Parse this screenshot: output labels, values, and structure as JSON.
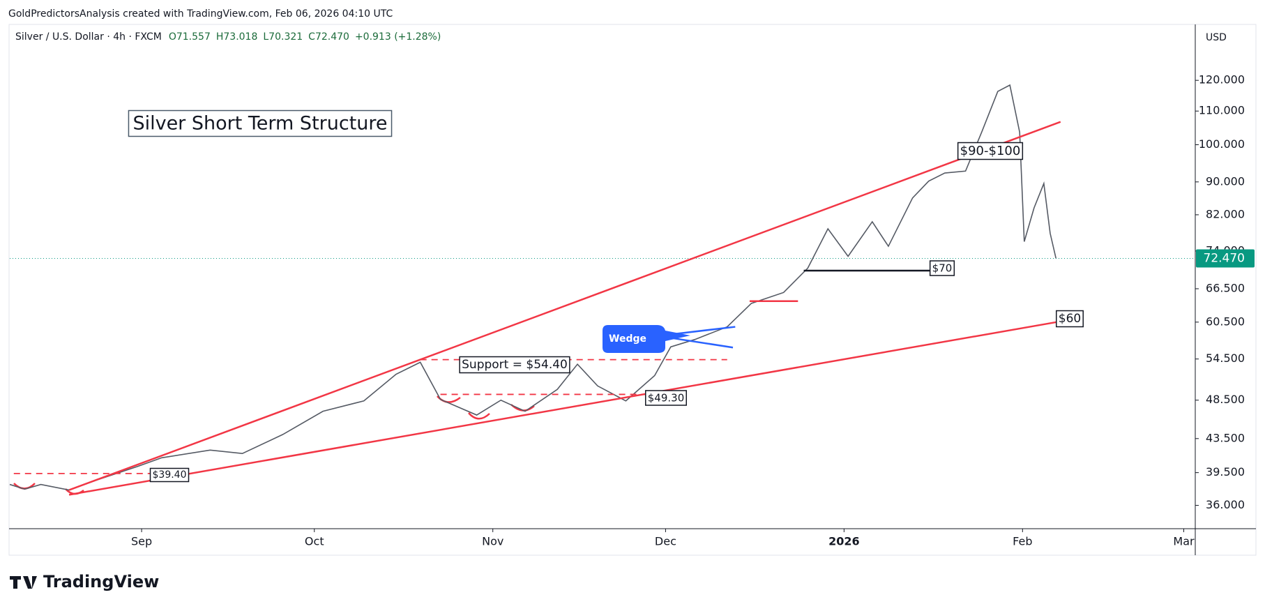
{
  "header": {
    "attribution": "GoldPredictorsAnalysis created with TradingView.com, Feb 06, 2026 04:10 UTC",
    "brand": "TradingView"
  },
  "chart_data": {
    "type": "line",
    "title": "Silver Short Term Structure",
    "symbol": "Silver / U.S. Dollar · 4h · FXCM",
    "ohlc": [
      "O71.557",
      "H73.018",
      "L70.321",
      "C72.470",
      "+0.913 (+1.28%)"
    ],
    "currency": "USD",
    "last_price": {
      "value": 72.47,
      "label": "72.470"
    },
    "log_scale": true,
    "x": [
      8.1,
      10.7,
      13.5,
      18.4,
      23.3,
      30.3,
      34.5,
      42.9,
      48.5,
      55.5,
      62.5,
      69.6,
      75.2,
      79.4,
      82.9,
      89.2,
      93.4,
      97.6,
      103.2,
      106.7,
      110.2,
      115.1,
      120.1,
      122.9,
      127.1,
      132.7,
      136.9,
      142.5,
      146.7,
      150.2,
      153.7,
      157.9,
      160.7,
      164.9,
      167.7,
      170.5,
      174.1,
      176.9,
      179.7,
      181.8,
      183.5,
      184.3,
      186.0,
      187.7,
      188.8,
      189.8
    ],
    "series": [
      {
        "color": "#555a64",
        "values": [
          38.2,
          37.7,
          38.2,
          37.6,
          38.7,
          40.2,
          41.2,
          42.1,
          41.7,
          44.0,
          47.0,
          48.4,
          52.2,
          54.0,
          48.6,
          46.5,
          48.5,
          47.0,
          50.0,
          53.7,
          50.5,
          48.4,
          52.0,
          56.4,
          57.6,
          59.7,
          63.8,
          65.8,
          70.5,
          78.8,
          72.9,
          80.4,
          75.0,
          86.0,
          90.2,
          92.3,
          92.8,
          103.6,
          116.3,
          118.4,
          103.6,
          76.0,
          83.6,
          89.6,
          77.8,
          72.5
        ]
      }
    ],
    "xlim": [
      8.1,
      214
    ],
    "ylim": [
      33.7,
      140.6
    ],
    "xticks": [
      {
        "value": 31,
        "label": "Sep"
      },
      {
        "value": 61,
        "label": "Oct"
      },
      {
        "value": 92,
        "label": "Nov"
      },
      {
        "value": 122,
        "label": "Dec"
      },
      {
        "value": 153,
        "label": "2026"
      },
      {
        "value": 184,
        "label": "Feb"
      },
      {
        "value": 212,
        "label": "Mar"
      }
    ],
    "yticks": [
      {
        "value": 36,
        "label": "36.000"
      },
      {
        "value": 39.5,
        "label": "39.500"
      },
      {
        "value": 43.5,
        "label": "43.500"
      },
      {
        "value": 48.5,
        "label": "48.500"
      },
      {
        "value": 54.5,
        "label": "54.500"
      },
      {
        "value": 60.5,
        "label": "60.500"
      },
      {
        "value": 66.5,
        "label": "66.500"
      },
      {
        "value": 74,
        "label": "74.000"
      },
      {
        "value": 82,
        "label": "82.000"
      },
      {
        "value": 90,
        "label": "90.000"
      },
      {
        "value": 100,
        "label": "100.000"
      },
      {
        "value": 110,
        "label": "110.000"
      },
      {
        "value": 120,
        "label": "120.000"
      }
    ],
    "lines": [
      {
        "color": "#f23645",
        "dashed": false,
        "points": [
          [
            18.4,
            37.6
          ],
          [
            190.6,
            106.7
          ]
        ]
      },
      {
        "color": "#f23645",
        "dashed": false,
        "points": [
          [
            18.4,
            37.1
          ],
          [
            189.9,
            60.5
          ]
        ]
      },
      {
        "color": "#f23645",
        "dashed": true,
        "points": [
          [
            8.8,
            39.4
          ],
          [
            33.1,
            39.4
          ]
        ]
      },
      {
        "color": "#f23645",
        "dashed": true,
        "points": [
          [
            79.4,
            54.4
          ],
          [
            132.7,
            54.4
          ]
        ]
      },
      {
        "color": "#f23645",
        "dashed": true,
        "points": [
          [
            82.9,
            49.3
          ],
          [
            118.7,
            49.3
          ]
        ]
      },
      {
        "color": "#f23645",
        "dashed": false,
        "points": [
          [
            136.6,
            64.2
          ],
          [
            145.0,
            64.2
          ]
        ]
      },
      {
        "color": "#131722",
        "dashed": false,
        "points": [
          [
            146.0,
            70
          ],
          [
            168.5,
            70
          ]
        ]
      },
      {
        "color": "#2962ff",
        "dashed": false,
        "points": [
          [
            122.6,
            58.4
          ],
          [
            134.1,
            59.7
          ]
        ]
      },
      {
        "color": "#2962ff",
        "dashed": false,
        "points": [
          [
            122.6,
            57.9
          ],
          [
            133.7,
            56.3
          ]
        ]
      }
    ],
    "annotations": [
      "$90-$100",
      "$70",
      "$60",
      "$49.30",
      "$39.40",
      "Support = $54.40",
      "Wedge"
    ]
  }
}
